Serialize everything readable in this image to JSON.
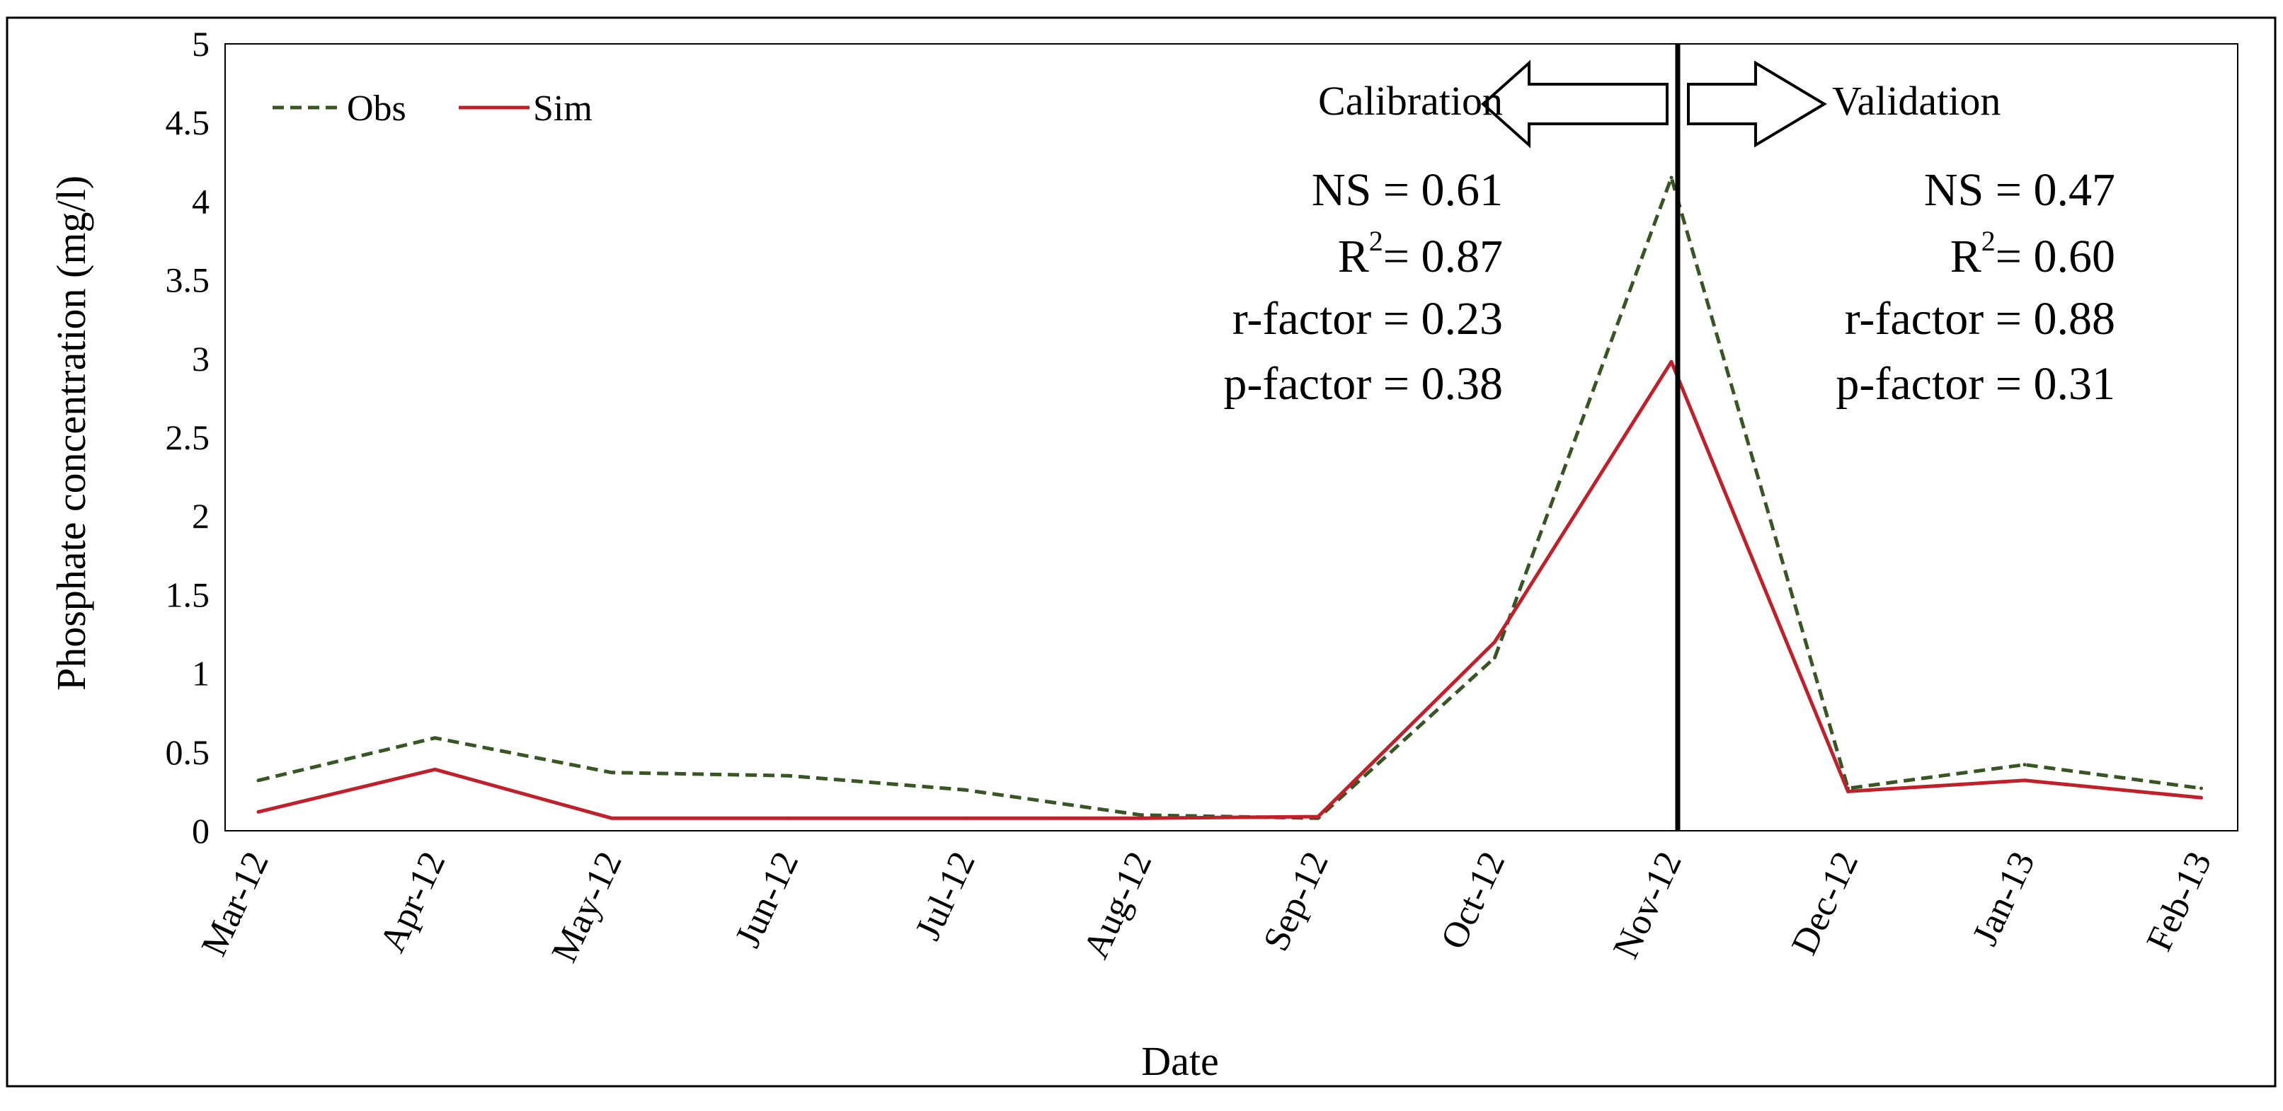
{
  "chart_data": {
    "type": "line",
    "xlabel": "Date",
    "ylabel": "Phosphate concentration (mg/l)",
    "ylim": [
      0,
      5
    ],
    "y_ticks": [
      "0",
      "0.5",
      "1",
      "1.5",
      "2",
      "2.5",
      "3",
      "3.5",
      "4",
      "4.5",
      "5"
    ],
    "x": [
      "Mar-12",
      "Apr-12",
      "May-12",
      "Jun-12",
      "Jul-12",
      "Aug-12",
      "Sep-12",
      "Oct-12",
      "Nov-12",
      "Dec-12",
      "Jan-13",
      "Feb-13"
    ],
    "series": [
      {
        "name": "Obs",
        "color": "#375623",
        "style": "dashed",
        "values": [
          0.32,
          0.59,
          0.37,
          0.35,
          0.26,
          0.1,
          0.08,
          1.1,
          4.15,
          0.27,
          0.42,
          0.27
        ]
      },
      {
        "name": "Sim",
        "color": "#c0202a",
        "style": "solid",
        "values": [
          0.12,
          0.39,
          0.08,
          0.08,
          0.08,
          0.08,
          0.09,
          1.2,
          2.98,
          0.25,
          0.32,
          0.21
        ]
      }
    ],
    "legend": "top-left",
    "grid": false,
    "split_marker": {
      "label_left": "Calibration",
      "label_right": "Validation"
    },
    "stats": {
      "calibration": {
        "ns": "NS = 0.61",
        "r2_prefix": "R",
        "r2_sup": "2",
        "r2_value": "= 0.87",
        "r_factor": "r-factor = 0.23",
        "p_factor": "p-factor = 0.38"
      },
      "validation": {
        "ns": "NS = 0.47",
        "r2_prefix": "R",
        "r2_sup": "2",
        "r2_value": "= 0.60",
        "r_factor": "r-factor = 0.88",
        "p_factor": "p-factor = 0.31"
      }
    }
  }
}
